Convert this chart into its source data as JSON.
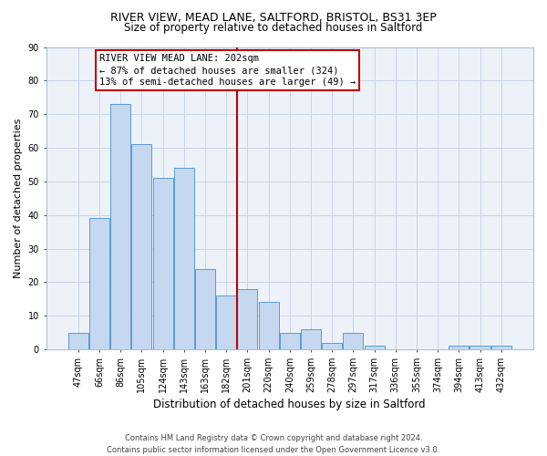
{
  "title1": "RIVER VIEW, MEAD LANE, SALTFORD, BRISTOL, BS31 3EP",
  "title2": "Size of property relative to detached houses in Saltford",
  "xlabel": "Distribution of detached houses by size in Saltford",
  "ylabel": "Number of detached properties",
  "categories": [
    "47sqm",
    "66sqm",
    "86sqm",
    "105sqm",
    "124sqm",
    "143sqm",
    "163sqm",
    "182sqm",
    "201sqm",
    "220sqm",
    "240sqm",
    "259sqm",
    "278sqm",
    "297sqm",
    "317sqm",
    "336sqm",
    "355sqm",
    "374sqm",
    "394sqm",
    "413sqm",
    "432sqm"
  ],
  "values": [
    5,
    39,
    73,
    61,
    51,
    54,
    24,
    16,
    18,
    14,
    5,
    6,
    2,
    5,
    1,
    0,
    0,
    0,
    1,
    1,
    1
  ],
  "bar_color": "#c5d8f0",
  "bar_edge_color": "#5b9bd5",
  "vline_x": 8.0,
  "vline_color": "#c00000",
  "annotation_line1": "RIVER VIEW MEAD LANE: 202sqm",
  "annotation_line2": "← 87% of detached houses are smaller (324)",
  "annotation_line3": "13% of semi-detached houses are larger (49) →",
  "annotation_box_color": "#c00000",
  "ylim": [
    0,
    90
  ],
  "yticks": [
    0,
    10,
    20,
    30,
    40,
    50,
    60,
    70,
    80,
    90
  ],
  "grid_color": "#c8d4e8",
  "bg_color": "#edf2f9",
  "footnote1": "Contains HM Land Registry data © Crown copyright and database right 2024.",
  "footnote2": "Contains public sector information licensed under the Open Government Licence v3.0.",
  "title1_fontsize": 9,
  "title2_fontsize": 8.5,
  "tick_fontsize": 7,
  "ylabel_fontsize": 8,
  "xlabel_fontsize": 8.5,
  "annotation_fontsize": 7.5,
  "footnote_fontsize": 6
}
